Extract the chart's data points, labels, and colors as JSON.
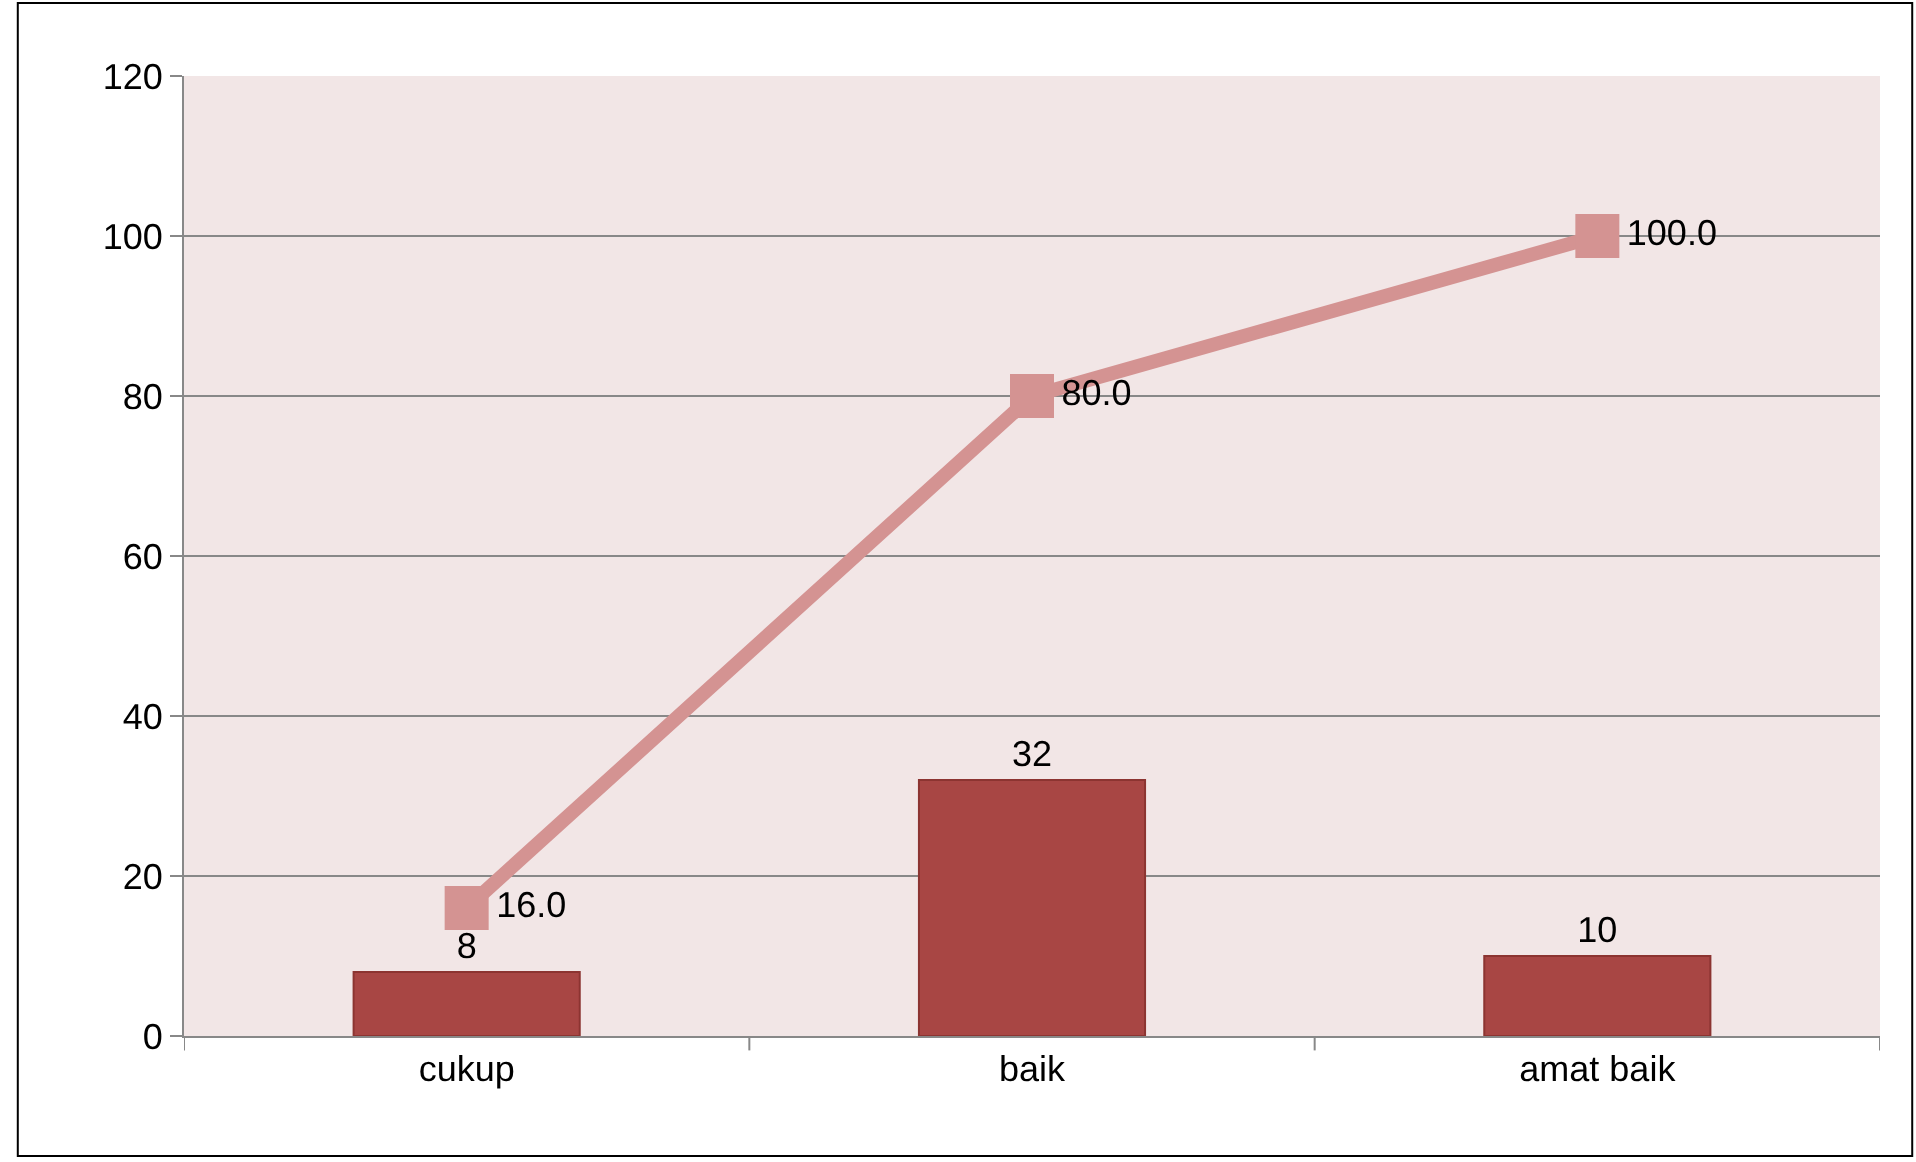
{
  "chart_data": {
    "type": "bar",
    "categories": [
      "cukup",
      "baik",
      "amat baik"
    ],
    "series": [
      {
        "color": "#a84644",
        "values": [
          8,
          32,
          10
        ],
        "value_labels": [
          "8",
          "32",
          "10"
        ]
      },
      {
        "type": "line",
        "color": "#d49392",
        "values": [
          16.0,
          80.0,
          100.0
        ],
        "value_labels": [
          "16.0",
          "80.0",
          "100.0"
        ],
        "marker": "square"
      }
    ],
    "ylim": [
      0,
      120
    ],
    "yticks": [
      0,
      20,
      40,
      60,
      80,
      100,
      120
    ],
    "grid": "y"
  }
}
